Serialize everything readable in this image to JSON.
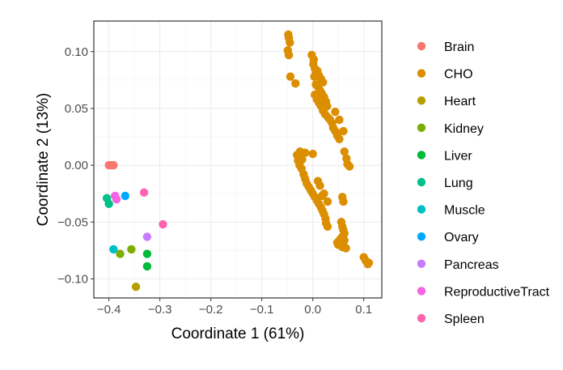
{
  "chart_data": {
    "type": "scatter",
    "title": "",
    "xlabel": "Coordinate 1 (61%)",
    "ylabel": "Coordinate 2 (13%)",
    "xlim": [
      -0.4296,
      0.1354
    ],
    "ylim": [
      -0.1168,
      0.1269
    ],
    "x_ticks": [
      -0.4,
      -0.3,
      -0.2,
      -0.1,
      0.0,
      0.1
    ],
    "x_tick_labels": [
      "−0.4",
      "−0.3",
      "−0.2",
      "−0.1",
      "0.0",
      "0.1"
    ],
    "y_ticks": [
      -0.1,
      -0.05,
      0.0,
      0.05,
      0.1
    ],
    "y_tick_labels": [
      "−0.10",
      "−0.05",
      "0.00",
      "0.05",
      "0.10"
    ],
    "grid": true,
    "legend_position": "right",
    "series": [
      {
        "name": "Brain",
        "color": "#F8766D",
        "points": [
          [
            -0.4,
            0.0
          ],
          [
            -0.395,
            0.0
          ],
          [
            -0.391,
            0.0
          ]
        ]
      },
      {
        "name": "CHO",
        "color": "#DB8E00",
        "points": [
          [
            -0.048,
            0.115
          ],
          [
            -0.047,
            0.112
          ],
          [
            -0.045,
            0.108
          ],
          [
            -0.049,
            0.101
          ],
          [
            -0.047,
            0.097
          ],
          [
            -0.044,
            0.078
          ],
          [
            -0.034,
            0.072
          ],
          [
            -0.002,
            0.097
          ],
          [
            0.002,
            0.093
          ],
          [
            0.001,
            0.089
          ],
          [
            0.004,
            0.085
          ],
          [
            0.006,
            0.081
          ],
          [
            0.003,
            0.078
          ],
          [
            0.009,
            0.083
          ],
          [
            0.012,
            0.079
          ],
          [
            0.016,
            0.076
          ],
          [
            0.02,
            0.073
          ],
          [
            0.006,
            0.071
          ],
          [
            0.01,
            0.069
          ],
          [
            0.014,
            0.066
          ],
          [
            0.018,
            0.063
          ],
          [
            0.022,
            0.06
          ],
          [
            0.026,
            0.056
          ],
          [
            0.028,
            0.052
          ],
          [
            0.004,
            0.062
          ],
          [
            0.008,
            0.058
          ],
          [
            0.012,
            0.055
          ],
          [
            0.016,
            0.052
          ],
          [
            0.02,
            0.048
          ],
          [
            0.024,
            0.045
          ],
          [
            0.03,
            0.042
          ],
          [
            0.034,
            0.04
          ],
          [
            0.038,
            0.037
          ],
          [
            0.04,
            0.033
          ],
          [
            0.044,
            0.03
          ],
          [
            0.048,
            0.026
          ],
          [
            0.052,
            0.023
          ],
          [
            0.062,
            0.012
          ],
          [
            0.066,
            0.006
          ],
          [
            0.068,
            0.001
          ],
          [
            0.072,
            -0.001
          ],
          [
            0.06,
            0.03
          ],
          [
            0.044,
            0.047
          ],
          [
            0.052,
            0.04
          ],
          [
            0.0,
            0.01
          ],
          [
            -0.025,
            0.012
          ],
          [
            -0.031,
            0.009
          ],
          [
            -0.029,
            0.004
          ],
          [
            -0.026,
            0.0
          ],
          [
            -0.022,
            -0.003
          ],
          [
            -0.018,
            -0.008
          ],
          [
            -0.015,
            -0.012
          ],
          [
            -0.012,
            -0.016
          ],
          [
            -0.008,
            -0.019
          ],
          [
            -0.004,
            -0.022
          ],
          [
            0.0,
            -0.025
          ],
          [
            0.004,
            -0.028
          ],
          [
            0.008,
            -0.031
          ],
          [
            0.012,
            -0.034
          ],
          [
            0.016,
            -0.037
          ],
          [
            0.019,
            -0.04
          ],
          [
            0.022,
            -0.043
          ],
          [
            0.025,
            -0.047
          ],
          [
            0.026,
            -0.051
          ],
          [
            0.029,
            -0.054
          ],
          [
            0.018,
            -0.027
          ],
          [
            0.01,
            -0.014
          ],
          [
            0.014,
            -0.018
          ],
          [
            0.022,
            -0.025
          ],
          [
            0.029,
            -0.032
          ],
          [
            -0.015,
            0.011
          ],
          [
            -0.021,
            0.005
          ],
          [
            0.058,
            -0.028
          ],
          [
            0.06,
            -0.032
          ],
          [
            0.056,
            -0.05
          ],
          [
            0.058,
            -0.054
          ],
          [
            0.06,
            -0.057
          ],
          [
            0.062,
            -0.06
          ],
          [
            0.058,
            -0.063
          ],
          [
            0.062,
            -0.066
          ],
          [
            0.06,
            -0.069
          ],
          [
            0.058,
            -0.072
          ],
          [
            0.054,
            -0.065
          ],
          [
            0.05,
            -0.07
          ],
          [
            0.048,
            -0.068
          ],
          [
            0.065,
            -0.073
          ],
          [
            0.1,
            -0.081
          ],
          [
            0.104,
            -0.084
          ],
          [
            0.108,
            -0.087
          ],
          [
            0.11,
            -0.086
          ]
        ]
      },
      {
        "name": "Heart",
        "color": "#B79F00",
        "points": [
          [
            -0.347,
            -0.107
          ]
        ]
      },
      {
        "name": "Kidney",
        "color": "#7CAE00",
        "points": [
          [
            -0.378,
            -0.078
          ],
          [
            -0.356,
            -0.074
          ]
        ]
      },
      {
        "name": "Liver",
        "color": "#00BA38",
        "points": [
          [
            -0.325,
            -0.078
          ],
          [
            -0.325,
            -0.089
          ]
        ]
      },
      {
        "name": "Lung",
        "color": "#00C08B",
        "points": [
          [
            -0.404,
            -0.029
          ],
          [
            -0.4,
            -0.034
          ]
        ]
      },
      {
        "name": "Muscle",
        "color": "#00BFC4",
        "points": [
          [
            -0.391,
            -0.074
          ]
        ]
      },
      {
        "name": "Ovary",
        "color": "#00A9FF",
        "points": [
          [
            -0.368,
            -0.027
          ]
        ]
      },
      {
        "name": "Pancreas",
        "color": "#C77CFF",
        "points": [
          [
            -0.325,
            -0.063
          ]
        ]
      },
      {
        "name": "ReproductiveTract",
        "color": "#F564E3",
        "points": [
          [
            -0.388,
            -0.027
          ],
          [
            -0.385,
            -0.03
          ]
        ]
      },
      {
        "name": "Spleen",
        "color": "#FF64B0",
        "points": [
          [
            -0.331,
            -0.024
          ],
          [
            -0.294,
            -0.052
          ]
        ]
      }
    ]
  }
}
